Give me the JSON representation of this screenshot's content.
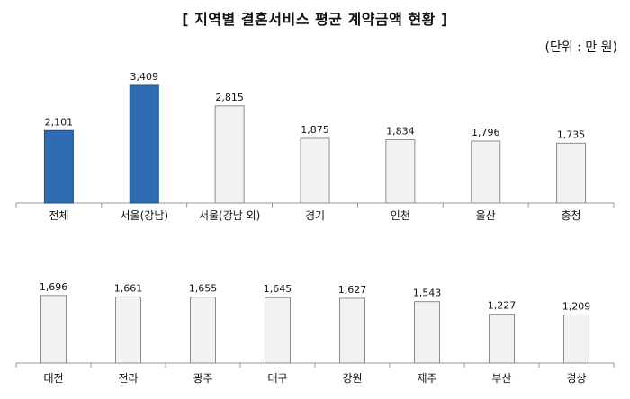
{
  "title": "[ 지역별 결혼서비스 평균 계약금액 현황 ]",
  "unit_label": "(단위 : 만 원)",
  "colors": {
    "highlight": "#2e6db4",
    "highlight_stroke": "#1f4e86",
    "normal": "#f2f2f2",
    "normal_stroke": "#8c8c8c",
    "axis": "#9a9a9a"
  },
  "chart_data": [
    {
      "type": "bar",
      "categories": [
        "전체",
        "서울(강남)",
        "서울(강남 외)",
        "경기",
        "인천",
        "울산",
        "충청"
      ],
      "values": [
        2101,
        3409,
        2815,
        1875,
        1834,
        1796,
        1735
      ],
      "value_labels": [
        "2,101",
        "3,409",
        "2,815",
        "1,875",
        "1,834",
        "1,796",
        "1,735"
      ],
      "highlighted": [
        true,
        true,
        false,
        false,
        false,
        false,
        false
      ],
      "title": "",
      "xlabel": "",
      "ylabel": "",
      "ylim": [
        0,
        3409
      ],
      "grid": false,
      "legend": "none"
    },
    {
      "type": "bar",
      "categories": [
        "대전",
        "전라",
        "광주",
        "대구",
        "강원",
        "제주",
        "부산",
        "경상"
      ],
      "values": [
        1696,
        1661,
        1655,
        1645,
        1627,
        1543,
        1227,
        1209
      ],
      "value_labels": [
        "1,696",
        "1,661",
        "1,655",
        "1,645",
        "1,627",
        "1,543",
        "1,227",
        "1,209"
      ],
      "highlighted": [
        false,
        false,
        false,
        false,
        false,
        false,
        false,
        false
      ],
      "title": "",
      "xlabel": "",
      "ylabel": "",
      "ylim": [
        0,
        3409
      ],
      "grid": false,
      "legend": "none"
    }
  ]
}
